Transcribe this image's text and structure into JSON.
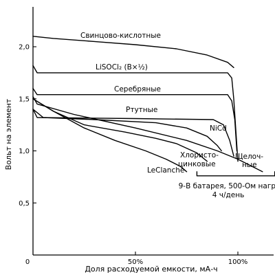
{
  "chart_data": {
    "type": "line",
    "title": "",
    "xlabel": "Доля расходуемой емкости, мА-ч",
    "ylabel": "Вольт на элемент",
    "xlim": [
      0,
      120
    ],
    "ylim": [
      0,
      2.4
    ],
    "x_ticks": [
      {
        "value": 0,
        "label": "0"
      },
      {
        "value": 50,
        "label": "50%"
      },
      {
        "value": 100,
        "label": "100%"
      }
    ],
    "y_ticks": [
      {
        "value": 0.5,
        "label": "0,5"
      },
      {
        "value": 1.0,
        "label": "1,0"
      },
      {
        "value": 1.5,
        "label": "1,5"
      },
      {
        "value": 2.0,
        "label": "2,0"
      }
    ],
    "grid": false,
    "series": [
      {
        "name": "Свинцово-кислотные",
        "x": [
          0,
          10,
          30,
          50,
          70,
          85,
          95,
          98
        ],
        "y": [
          2.1,
          2.08,
          2.05,
          2.02,
          1.98,
          1.92,
          1.85,
          1.8
        ]
      },
      {
        "name": "LiSOCl₂ (В×½)",
        "x": [
          0,
          2,
          50,
          95,
          97,
          98,
          99,
          100
        ],
        "y": [
          1.82,
          1.75,
          1.75,
          1.75,
          1.7,
          1.5,
          1.2,
          0.9
        ]
      },
      {
        "name": "Серебряные",
        "x": [
          0,
          2,
          50,
          95,
          97,
          98.5,
          99.5
        ],
        "y": [
          1.6,
          1.54,
          1.54,
          1.54,
          1.48,
          1.3,
          1.0
        ]
      },
      {
        "name": "Ртутные",
        "x": [
          0,
          2,
          50,
          88,
          93,
          96,
          98
        ],
        "y": [
          1.4,
          1.32,
          1.31,
          1.3,
          1.25,
          1.1,
          0.95
        ]
      },
      {
        "name": "NiCd",
        "x": [
          0,
          5,
          30,
          60,
          75,
          85,
          90,
          92
        ],
        "y": [
          1.4,
          1.32,
          1.3,
          1.27,
          1.22,
          1.14,
          1.05,
          1.0
        ]
      },
      {
        "name": "Хлористо-цинковые",
        "x": [
          0,
          10,
          25,
          45,
          60,
          70,
          80,
          85
        ],
        "y": [
          1.5,
          1.38,
          1.25,
          1.18,
          1.12,
          1.07,
          0.98,
          0.9
        ]
      },
      {
        "name": "LeClanche",
        "x": [
          0,
          10,
          25,
          40,
          55,
          65,
          72,
          75
        ],
        "y": [
          1.5,
          1.38,
          1.22,
          1.1,
          1.0,
          0.92,
          0.85,
          0.8
        ]
      },
      {
        "name": "Щелоч-ные",
        "x": [
          0,
          2,
          20,
          50,
          75,
          90,
          100,
          107,
          112
        ],
        "y": [
          1.52,
          1.45,
          1.35,
          1.22,
          1.1,
          1.0,
          0.92,
          0.85,
          0.8
        ]
      }
    ],
    "annotations": [
      {
        "label": "Свинцово-кислотные"
      },
      {
        "label": "LiSOCl₂ (В×½)"
      },
      {
        "label": "Серебряные"
      },
      {
        "label": "Ртутные"
      },
      {
        "label": "NiCd"
      },
      {
        "label": "Хлористо-"
      },
      {
        "label": "цинковые"
      },
      {
        "label": "Щелоч-"
      },
      {
        "label": "ные"
      },
      {
        "label": "LeClanche"
      },
      {
        "label": "9-В батарея, 500-Ом нагр."
      },
      {
        "label": "4 ч/день"
      }
    ]
  }
}
